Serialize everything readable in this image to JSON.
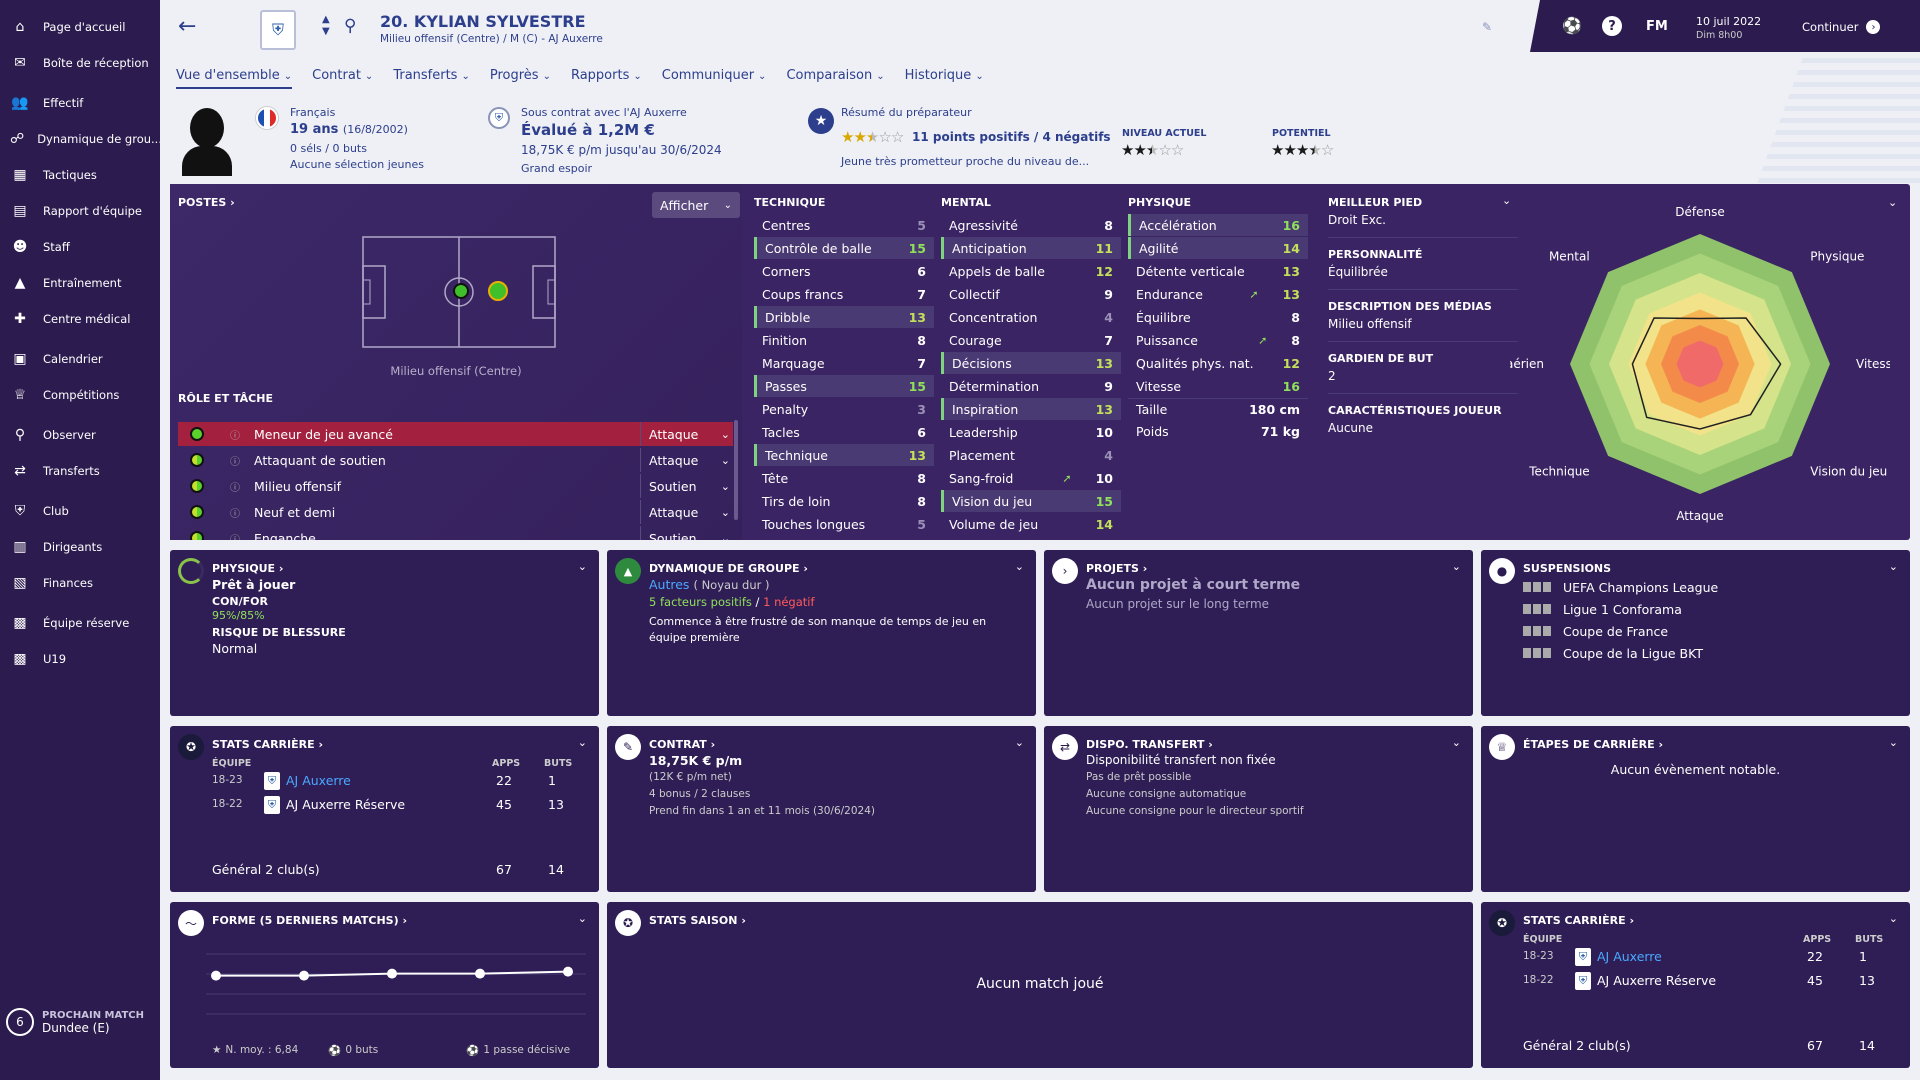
{
  "sidebar": {
    "items": [
      {
        "label": "Page d'accueil",
        "icon": "home-icon",
        "glyph": "⌂"
      },
      {
        "label": "Boîte de réception",
        "icon": "inbox-icon",
        "glyph": "✉"
      },
      {
        "label": "Effectif",
        "icon": "squad-icon",
        "glyph": "👥"
      },
      {
        "label": "Dynamique de grou...",
        "icon": "dynamics-icon",
        "glyph": "☍"
      },
      {
        "label": "Tactiques",
        "icon": "tactics-icon",
        "glyph": "▦"
      },
      {
        "label": "Rapport d'équipe",
        "icon": "report-icon",
        "glyph": "▤"
      },
      {
        "label": "Staff",
        "icon": "staff-icon",
        "glyph": "☻"
      },
      {
        "label": "Entraînement",
        "icon": "training-icon",
        "glyph": "▲"
      },
      {
        "label": "Centre médical",
        "icon": "medical-icon",
        "glyph": "✚"
      },
      {
        "label": "Calendrier",
        "icon": "calendar-icon",
        "glyph": "▣"
      },
      {
        "label": "Compétitions",
        "icon": "trophy-icon",
        "glyph": "♕"
      },
      {
        "label": "Observer",
        "icon": "scout-icon",
        "glyph": "⚲"
      },
      {
        "label": "Transferts",
        "icon": "transfers-icon",
        "glyph": "⇄"
      },
      {
        "label": "Club",
        "icon": "club-icon",
        "glyph": "⛨"
      },
      {
        "label": "Dirigeants",
        "icon": "board-icon",
        "glyph": "▥"
      },
      {
        "label": "Finances",
        "icon": "finances-icon",
        "glyph": "▧"
      },
      {
        "label": "Équipe réserve",
        "icon": "reserve-icon",
        "glyph": "▩"
      },
      {
        "label": "U19",
        "icon": "u19-icon",
        "glyph": "▩"
      }
    ],
    "next_match_label": "PROCHAIN MATCH",
    "next_match_value": "Dundee (E)",
    "next_match_num": "6"
  },
  "header": {
    "player_title": "20. KYLIAN SYLVESTRE",
    "player_subtitle": "Milieu offensif (Centre) / M (C) - AJ Auxerre",
    "date": "10 juil 2022",
    "time": "Dim 8h00",
    "continue_label": "Continuer",
    "fm_label": "FM",
    "tabs": [
      "Vue d'ensemble",
      "Contrat",
      "Transferts",
      "Progrès",
      "Rapports",
      "Communiquer",
      "Comparaison",
      "Historique"
    ]
  },
  "summary": {
    "nationality": "Français",
    "age": "19 ans",
    "dob": "(16/8/2002)",
    "caps": "0 séls / 0 buts",
    "youth": "Aucune sélection jeunes",
    "contract_club": "Sous contrat avec l'AJ Auxerre",
    "value": "Évalué à 1,2M €",
    "wage": "18,75K € p/m jusqu'au 30/6/2024",
    "tag": "Grand espoir",
    "coach_title": "Résumé du préparateur",
    "coach_points": "11 points positifs / 4 négatifs",
    "coach_desc": "Jeune très prometteur proche du niveau de...",
    "current_label": "NIVEAU ACTUEL",
    "potential_label": "POTENTIEL",
    "current_stars": 2.5,
    "potential_stars": 3.5
  },
  "positions": {
    "title": "POSTES",
    "show_btn": "Afficher",
    "position_label": "Milieu offensif (Centre)",
    "role_title": "RÔLE ET TÂCHE",
    "roles": [
      {
        "name": "Meneur de jeu avancé",
        "duty": "Attaque"
      },
      {
        "name": "Attaquant de soutien",
        "duty": "Attaque"
      },
      {
        "name": "Milieu offensif",
        "duty": "Soutien"
      },
      {
        "name": "Neuf et demi",
        "duty": "Attaque"
      },
      {
        "name": "Enganche",
        "duty": "Soutien"
      }
    ]
  },
  "attributes": {
    "technique_title": "TECHNIQUE",
    "mental_title": "MENTAL",
    "physique_title": "PHYSIQUE",
    "technique": [
      {
        "n": "Centres",
        "v": "5"
      },
      {
        "n": "Contrôle de balle",
        "v": "15"
      },
      {
        "n": "Corners",
        "v": "6"
      },
      {
        "n": "Coups francs",
        "v": "7"
      },
      {
        "n": "Dribble",
        "v": "13"
      },
      {
        "n": "Finition",
        "v": "8"
      },
      {
        "n": "Marquage",
        "v": "7"
      },
      {
        "n": "Passes",
        "v": "15"
      },
      {
        "n": "Penalty",
        "v": "3"
      },
      {
        "n": "Tacles",
        "v": "6"
      },
      {
        "n": "Technique",
        "v": "13"
      },
      {
        "n": "Tête",
        "v": "8"
      },
      {
        "n": "Tirs de loin",
        "v": "8"
      },
      {
        "n": "Touches longues",
        "v": "5"
      }
    ],
    "mental": [
      {
        "n": "Agressivité",
        "v": "8"
      },
      {
        "n": "Anticipation",
        "v": "11"
      },
      {
        "n": "Appels de balle",
        "v": "12"
      },
      {
        "n": "Collectif",
        "v": "9"
      },
      {
        "n": "Concentration",
        "v": "4"
      },
      {
        "n": "Courage",
        "v": "7"
      },
      {
        "n": "Décisions",
        "v": "13"
      },
      {
        "n": "Détermination",
        "v": "9"
      },
      {
        "n": "Inspiration",
        "v": "13"
      },
      {
        "n": "Leadership",
        "v": "10"
      },
      {
        "n": "Placement",
        "v": "4"
      },
      {
        "n": "Sang-froid",
        "v": "10"
      },
      {
        "n": "Vision du jeu",
        "v": "15"
      },
      {
        "n": "Volume de jeu",
        "v": "14"
      }
    ],
    "physique": [
      {
        "n": "Accélération",
        "v": "16"
      },
      {
        "n": "Agilité",
        "v": "14"
      },
      {
        "n": "Détente verticale",
        "v": "13"
      },
      {
        "n": "Endurance",
        "v": "13"
      },
      {
        "n": "Équilibre",
        "v": "8"
      },
      {
        "n": "Puissance",
        "v": "8"
      },
      {
        "n": "Qualités phys. nat.",
        "v": "12"
      },
      {
        "n": "Vitesse",
        "v": "16"
      }
    ],
    "height_label": "Taille",
    "height": "180 cm",
    "weight_label": "Poids",
    "weight": "71 kg"
  },
  "info": {
    "foot_label": "MEILLEUR PIED",
    "foot": "Droit Exc.",
    "personality_label": "PERSONNALITÉ",
    "personality": "Équilibrée",
    "media_label": "DESCRIPTION DES MÉDIAS",
    "media": "Milieu offensif",
    "gk_label": "GARDIEN DE BUT",
    "gk": "2",
    "traits_label": "CARACTÉRISTIQUES JOUEUR",
    "traits": "Aucune"
  },
  "radar": {
    "labels": [
      "Défense",
      "Physique",
      "Vitesse",
      "Vision du jeu",
      "Attaque",
      "Technique",
      "Jeu aérien",
      "Mental"
    ],
    "values": [
      0.35,
      0.5,
      0.62,
      0.55,
      0.5,
      0.58,
      0.52,
      0.5
    ]
  },
  "cards": {
    "physique": {
      "title": "PHYSIQUE",
      "status": "Prêt à jouer",
      "confor_label": "CON/FOR",
      "confor": "95%/85%",
      "risk_label": "RISQUE DE BLESSURE",
      "risk": "Normal"
    },
    "dynamics": {
      "title": "DYNAMIQUE DE GROUPE",
      "group": "Autres",
      "group_sub": "( Noyau dur )",
      "positive": "5 facteurs positifs",
      "negative": "1 négatif",
      "desc": "Commence à être frustré de son manque de temps de jeu en équipe première"
    },
    "projects": {
      "title": "PROJETS",
      "short": "Aucun projet à court terme",
      "long": "Aucun projet sur le long terme"
    },
    "suspensions": {
      "title": "SUSPENSIONS",
      "items": [
        "UEFA Champions League",
        "Ligue 1 Conforama",
        "Coupe de France",
        "Coupe de la Ligue BKT"
      ]
    },
    "career": {
      "title": "STATS CARRIÈRE",
      "col_team": "ÉQUIPE",
      "col_apps": "APPS",
      "col_goals": "BUTS",
      "rows": [
        {
          "years": "18-23",
          "team": "AJ Auxerre",
          "apps": "22",
          "goals": "1"
        },
        {
          "years": "18-22",
          "team": "AJ Auxerre Réserve",
          "apps": "45",
          "goals": "13"
        }
      ],
      "total_label": "Général 2 club(s)",
      "total_apps": "67",
      "total_goals": "14"
    },
    "contract": {
      "title": "CONTRAT",
      "wage": "18,75K € p/m",
      "net": "(12K € p/m net)",
      "bonus": "4 bonus / 2 clauses",
      "ends": "Prend fin dans 1 an et 11 mois (30/6/2024)"
    },
    "transfer": {
      "title": "DISPO. TRANSFERT",
      "status": "Disponibilité transfert non fixée",
      "l1": "Pas de prêt possible",
      "l2": "Aucune consigne automatique",
      "l3": "Aucune consigne pour le directeur sportif"
    },
    "milestones": {
      "title": "ÉTAPES DE CARRIÈRE",
      "text": "Aucun évènement notable."
    },
    "form": {
      "title": "FORME (5 DERNIERS MATCHS)",
      "avg": "N. moy. : 6,84",
      "goals": "0 buts",
      "assists": "1 passe décisive",
      "points": [
        6.8,
        6.8,
        6.85,
        6.85,
        6.9
      ]
    },
    "season": {
      "title": "STATS SAISON",
      "text": "Aucun match joué"
    }
  }
}
